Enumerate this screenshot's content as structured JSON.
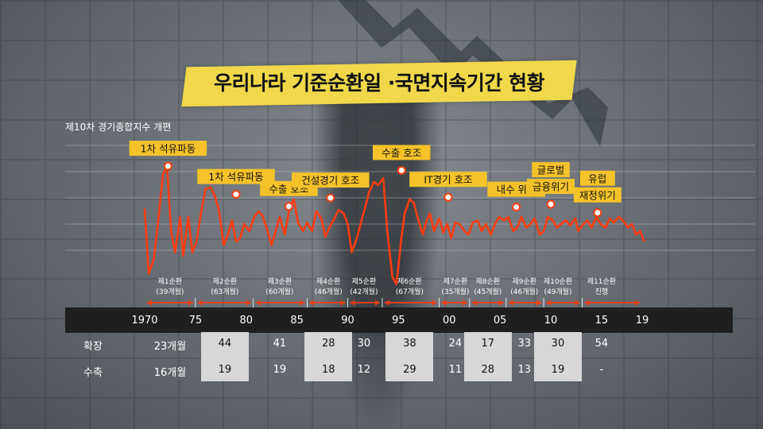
{
  "title": "우리나라 기준순환일 ·국면지속기간 현황",
  "subtitle": "제10차 경기종합지수 개편",
  "colors": {
    "line": "#ff3b10",
    "label_bg": "#f5c22a",
    "banner": "#f0d84a",
    "axis_band": "#1f1f1f",
    "highlight": "#d7d7d7"
  },
  "chart_data": {
    "type": "line",
    "title": "우리나라 기준순환일 ·국면지속기간 현황",
    "subtitle": "제10차 경기종합지수 개편",
    "x_ticks": [
      "1970",
      "75",
      "80",
      "85",
      "90",
      "95",
      "00",
      "05",
      "10",
      "15",
      "19"
    ],
    "x_range": [
      1970,
      2019
    ],
    "grid": true,
    "series": [
      {
        "x": [
          1970.0,
          1970.4,
          1970.9,
          1971.3,
          1971.8,
          1972.2,
          1972.6,
          1973.0,
          1973.5,
          1973.8,
          1974.3,
          1974.7,
          1975.1,
          1975.6,
          1976.0,
          1976.5,
          1976.9,
          1977.3,
          1977.8,
          1978.2,
          1978.6,
          1979.0,
          1979.4,
          1979.8,
          1980.3,
          1980.8,
          1981.2,
          1981.6,
          1982.0,
          1982.5,
          1982.9,
          1983.3,
          1983.8,
          1984.3,
          1984.7,
          1985.1,
          1985.6,
          1986.0,
          1986.5,
          1986.9,
          1987.4,
          1987.8,
          1988.3,
          1988.7,
          1989.1,
          1989.6,
          1990.0,
          1990.4,
          1990.9,
          1991.3,
          1991.8,
          1992.1,
          1992.6,
          1993.0,
          1993.5,
          1993.9,
          1994.4,
          1994.8,
          1995.3,
          1995.6,
          1996.1,
          1996.5,
          1996.9,
          1997.4,
          1997.7,
          1998.1,
          1998.5,
          1999.0,
          1999.4,
          1999.8,
          2000.2,
          2000.6,
          2001.0,
          2001.5,
          2001.9,
          2002.3,
          2002.8,
          2003.2,
          2003.6,
          2004.1,
          2004.5,
          2004.9,
          2005.4,
          2005.8,
          2006.3,
          2006.7,
          2007.1,
          2007.6,
          2008.0,
          2008.4,
          2008.9,
          2009.3,
          2009.7,
          2010.2,
          2010.6,
          2011.0,
          2011.5,
          2011.9,
          2012.4,
          2012.7,
          2013.2,
          2013.6,
          2014.0,
          2014.5,
          2014.9,
          2015.4,
          2015.8,
          2016.2,
          2016.7,
          2017.1,
          2017.6,
          2018.0,
          2018.4,
          2018.8,
          2019.2
        ],
        "values": [
          0.42,
          -0.5,
          -0.3,
          0.2,
          0.9,
          1.02,
          0.1,
          -0.2,
          0.3,
          -0.25,
          0.3,
          -0.2,
          -0.05,
          0.4,
          0.7,
          0.72,
          0.6,
          0.4,
          -0.1,
          0.05,
          0.25,
          -0.05,
          0.0,
          0.2,
          0.1,
          0.3,
          0.38,
          0.32,
          0.15,
          -0.1,
          0.1,
          0.3,
          0.05,
          0.45,
          0.55,
          0.22,
          0.1,
          0.22,
          0.1,
          0.38,
          0.28,
          0.02,
          0.18,
          0.28,
          0.4,
          0.35,
          0.2,
          -0.2,
          0.0,
          0.22,
          0.48,
          0.65,
          0.8,
          0.75,
          0.85,
          0.1,
          -0.55,
          -0.65,
          0.02,
          0.35,
          0.55,
          0.5,
          0.28,
          0.05,
          0.22,
          0.35,
          0.1,
          0.28,
          0.08,
          0.2,
          0.0,
          0.22,
          0.2,
          0.1,
          0.05,
          0.22,
          0.25,
          0.1,
          0.2,
          0.05,
          0.2,
          0.3,
          0.25,
          0.3,
          0.1,
          0.15,
          0.3,
          0.15,
          0.2,
          0.28,
          0.05,
          0.1,
          0.3,
          0.25,
          0.15,
          0.2,
          0.25,
          0.18,
          0.28,
          0.1,
          0.2,
          0.25,
          0.15,
          0.3,
          0.2,
          0.15,
          0.28,
          0.22,
          0.3,
          0.25,
          0.15,
          0.2,
          0.05,
          0.1,
          -0.05
        ]
      }
    ],
    "annotations": [
      {
        "text": "1차 석유파동",
        "x": 1972.3,
        "y": 1.02
      },
      {
        "text": "1차 석유파동",
        "x": 1979.0,
        "y": 0.62
      },
      {
        "text": "수출 호조",
        "x": 1984.2,
        "y": 0.45
      },
      {
        "text": "건설경기 호조",
        "x": 1988.3,
        "y": 0.57
      },
      {
        "text": "수출 호조",
        "x": 1995.3,
        "y": 0.96
      },
      {
        "text": "IT경기 호조",
        "x": 1999.9,
        "y": 0.58
      },
      {
        "text": "내수 위축",
        "x": 2006.6,
        "y": 0.44
      },
      {
        "text": "글로벌",
        "x": 2010.0,
        "y": 0.48
      },
      {
        "text": "금융위기",
        "x": 2010.0,
        "y": 0.48
      },
      {
        "text": "유럽",
        "x": 2014.6,
        "y": 0.36
      },
      {
        "text": "재정위기",
        "x": 2014.6,
        "y": 0.36
      }
    ]
  },
  "cycles": [
    {
      "name": "제1순환",
      "months": "(39개월)",
      "from": 1970.0,
      "to": 1975.0,
      "center": 1972.5
    },
    {
      "name": "제2순환",
      "months": "(63개월)",
      "from": 1975.0,
      "to": 1980.7,
      "center": 1977.9
    },
    {
      "name": "제3순환",
      "months": "(60개월)",
      "from": 1980.7,
      "to": 1986.0,
      "center": 1983.3
    },
    {
      "name": "제4순환",
      "months": "(46개월)",
      "from": 1986.0,
      "to": 1990.0,
      "center": 1988.1
    },
    {
      "name": "제5순환",
      "months": "(42개월)",
      "from": 1990.0,
      "to": 1993.4,
      "center": 1991.6
    },
    {
      "name": "제6순환",
      "months": "(67개월)",
      "from": 1993.4,
      "to": 1999.0,
      "center": 1996.1
    },
    {
      "name": "제7순환",
      "months": "(35개월)",
      "from": 1999.0,
      "to": 2002.0,
      "center": 2000.6
    },
    {
      "name": "제8순환",
      "months": "(45개월)",
      "from": 2002.0,
      "to": 2005.6,
      "center": 2003.8
    },
    {
      "name": "제9순환",
      "months": "(46개월)",
      "from": 2005.6,
      "to": 2009.3,
      "center": 2007.4
    },
    {
      "name": "제10순환",
      "months": "(49개월)",
      "from": 2009.3,
      "to": 2013.1,
      "center": 2010.7
    },
    {
      "name": "제11순환",
      "months": "진행",
      "from": 2013.1,
      "to": 2019.0,
      "center": 2015.0
    }
  ],
  "table": {
    "rows": [
      {
        "label": "확장",
        "values": [
          "23개월",
          "44",
          "41",
          "28",
          "30",
          "38",
          "24",
          "17",
          "33",
          "30",
          "54"
        ]
      },
      {
        "label": "수축",
        "values": [
          "16개월",
          "19",
          "19",
          "18",
          "12",
          "29",
          "11",
          "28",
          "13",
          "19",
          "-"
        ]
      }
    ],
    "highlight_columns": [
      1,
      3,
      5,
      7,
      9
    ]
  }
}
